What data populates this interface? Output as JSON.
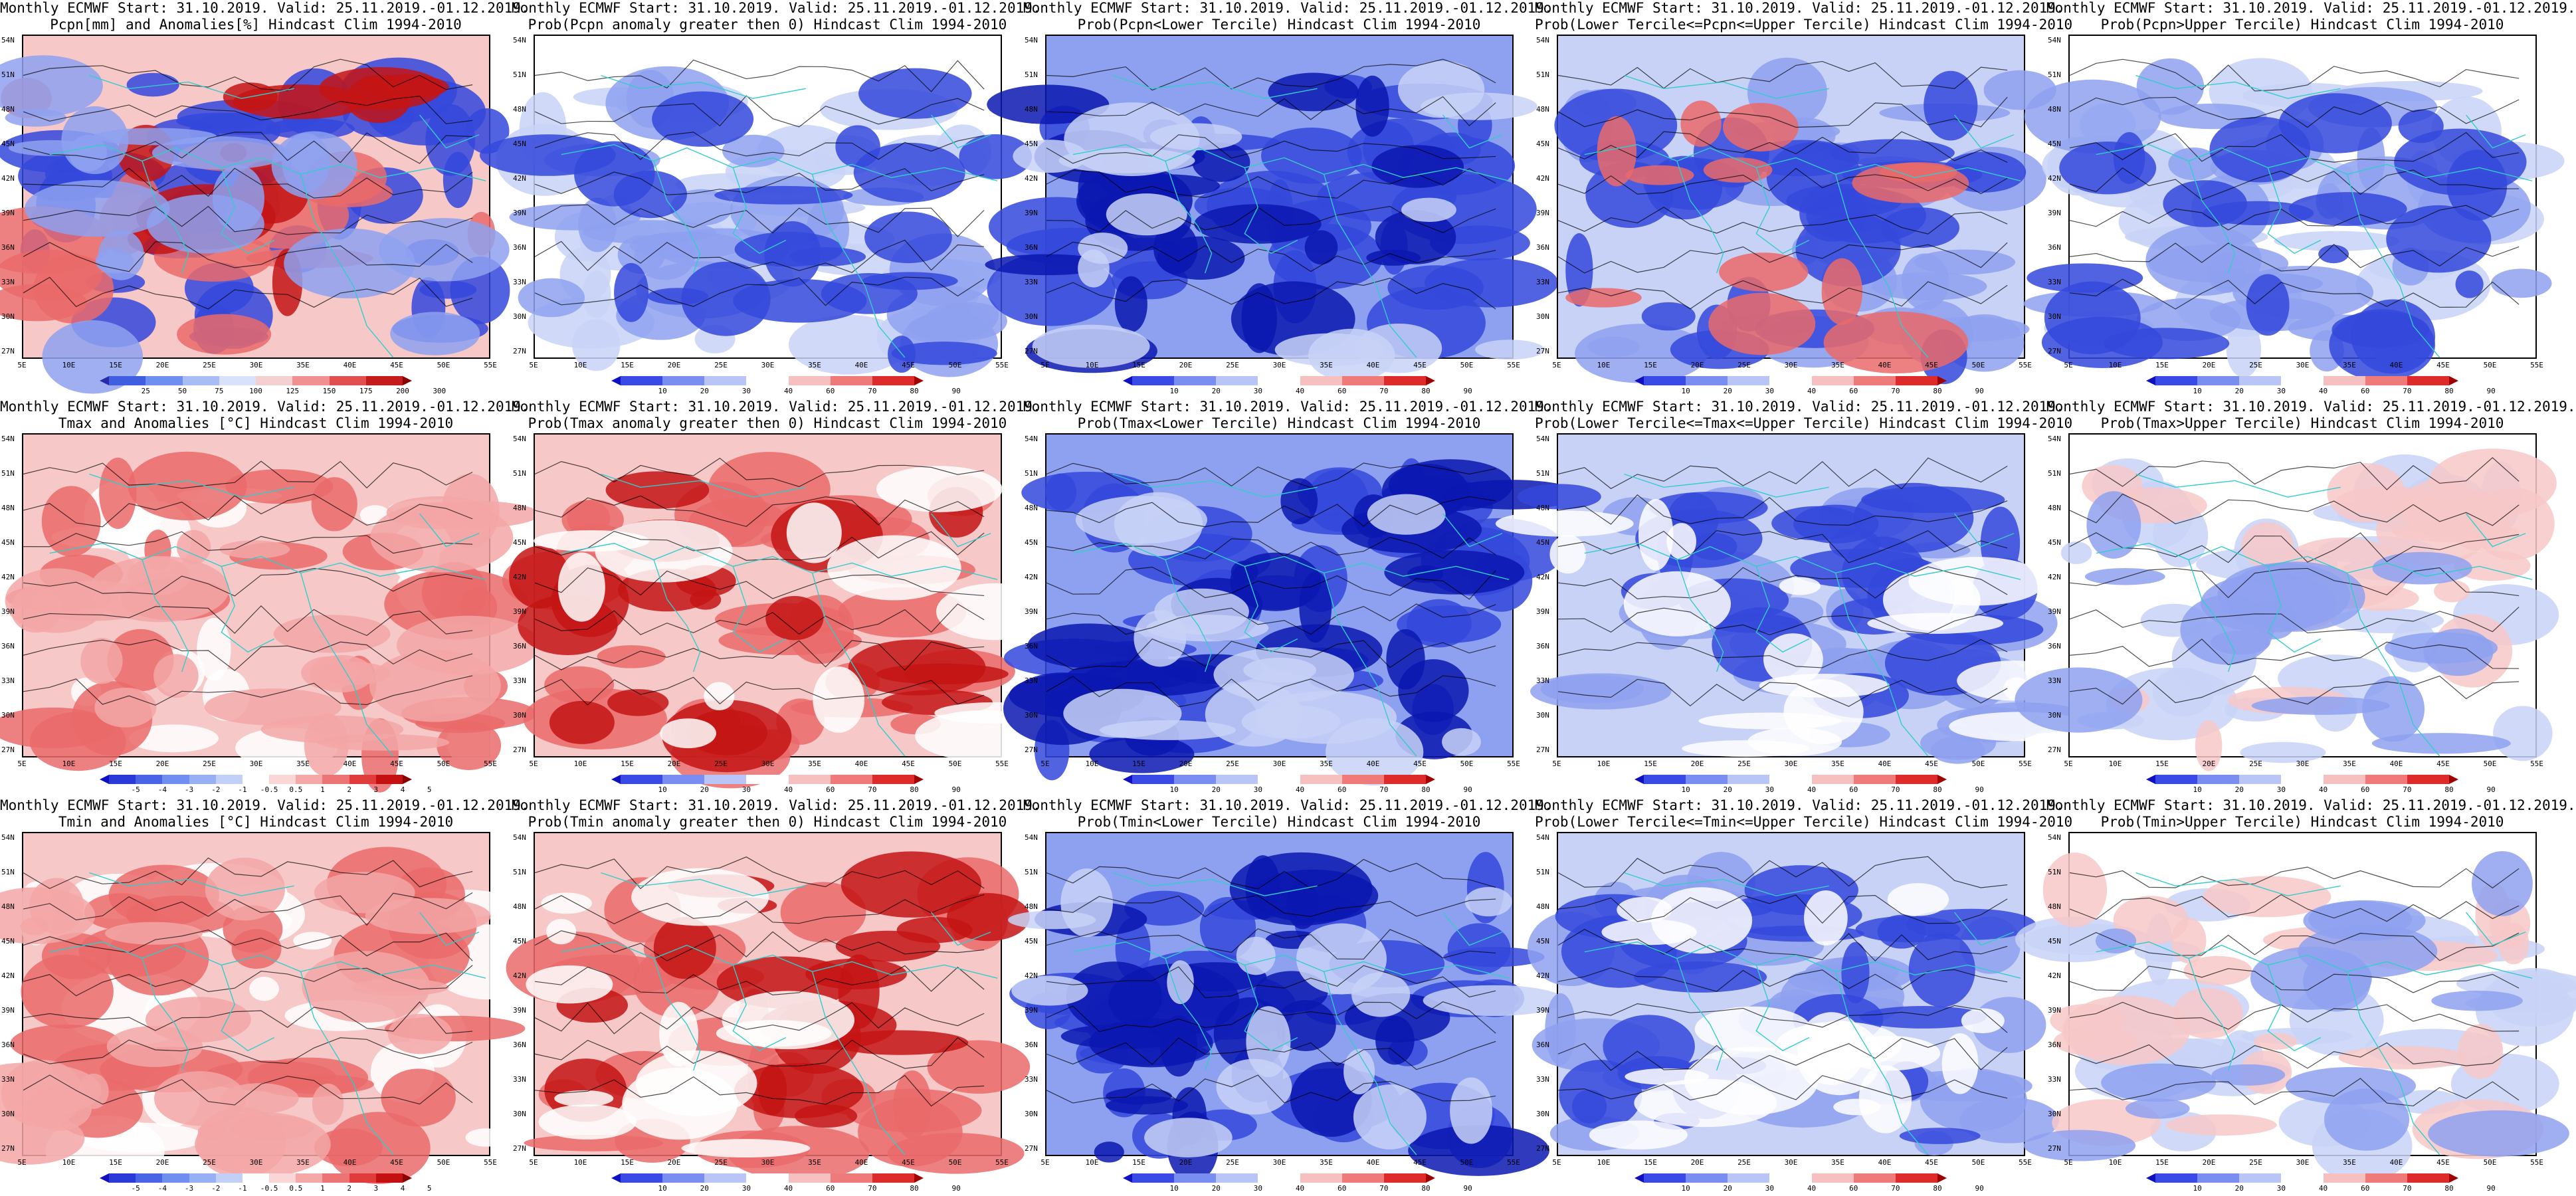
{
  "rows": [
    {
      "panels": [
        {
          "title1": "Monthly ECMWF Start: 31.10.2019. Valid: 25.11.2019.-01.12.2019.",
          "title2": "Pcpn[mm] and Anomalies[%] Hindcast Clim 1994-2010",
          "scheme": "anom_pcpn",
          "cbar": "pcpn"
        },
        {
          "title1": "Monthly ECMWF Start: 31.10.2019. Valid: 25.11.2019.-01.12.2019.",
          "title2": "Prob(Pcpn anomaly greater then 0) Hindcast Clim 1994-2010",
          "scheme": "prob_low",
          "cbar": "prob"
        },
        {
          "title1": "Monthly ECMWF Start: 31.10.2019. Valid: 25.11.2019.-01.12.2019.",
          "title2": "Prob(Pcpn<Lower Tercile) Hindcast Clim 1994-2010",
          "scheme": "prob_deep",
          "cbar": "prob"
        },
        {
          "title1": "Monthly ECMWF Start: 31.10.2019. Valid: 25.11.2019.-01.12.2019.",
          "title2": "Prob(Lower Tercile<=Pcpn<=Upper Tercile) Hindcast Clim 1994-2010",
          "scheme": "prob_mix",
          "cbar": "prob"
        },
        {
          "title1": "Monthly ECMWF Start: 31.10.2019. Valid: 25.11.2019.-01.12.2019.",
          "title2": "Prob(Pcpn>Upper Tercile) Hindcast Clim 1994-2010",
          "scheme": "prob_low",
          "cbar": "prob"
        }
      ]
    },
    {
      "panels": [
        {
          "title1": "Monthly ECMWF Start: 31.10.2019. Valid: 25.11.2019.-01.12.2019.",
          "title2": "Tmax and Anomalies [°C] Hindcast Clim 1994-2010",
          "scheme": "warm",
          "cbar": "temp"
        },
        {
          "title1": "Monthly ECMWF Start: 31.10.2019. Valid: 25.11.2019.-01.12.2019.",
          "title2": "Prob(Tmax anomaly greater then 0) Hindcast Clim 1994-2010",
          "scheme": "hot",
          "cbar": "prob"
        },
        {
          "title1": "Monthly ECMWF Start: 31.10.2019. Valid: 25.11.2019.-01.12.2019.",
          "title2": "Prob(Tmax<Lower Tercile) Hindcast Clim 1994-2010",
          "scheme": "prob_deep",
          "cbar": "prob"
        },
        {
          "title1": "Monthly ECMWF Start: 31.10.2019. Valid: 25.11.2019.-01.12.2019.",
          "title2": "Prob(Lower Tercile<=Tmax<=Upper Tercile) Hindcast Clim 1994-2010",
          "scheme": "prob_mid",
          "cbar": "prob"
        },
        {
          "title1": "Monthly ECMWF Start: 31.10.2019. Valid: 25.11.2019.-01.12.2019.",
          "title2": "Prob(Tmax>Upper Tercile) Hindcast Clim 1994-2010",
          "scheme": "prob_warmish",
          "cbar": "prob"
        }
      ]
    },
    {
      "panels": [
        {
          "title1": "Monthly ECMWF Start: 31.10.2019. Valid: 25.11.2019.-01.12.2019.",
          "title2": "Tmin and Anomalies [°C] Hindcast Clim 1994-2010",
          "scheme": "warm",
          "cbar": "temp"
        },
        {
          "title1": "Monthly ECMWF Start: 31.10.2019. Valid: 25.11.2019.-01.12.2019.",
          "title2": "Prob(Tmin anomaly greater then 0) Hindcast Clim 1994-2010",
          "scheme": "hot",
          "cbar": "prob"
        },
        {
          "title1": "Monthly ECMWF Start: 31.10.2019. Valid: 25.11.2019.-01.12.2019.",
          "title2": "Prob(Tmin<Lower Tercile) Hindcast Clim 1994-2010",
          "scheme": "prob_deep",
          "cbar": "prob"
        },
        {
          "title1": "Monthly ECMWF Start: 31.10.2019. Valid: 25.11.2019.-01.12.2019.",
          "title2": "Prob(Lower Tercile<=Tmin<=Upper Tercile) Hindcast Clim 1994-2010",
          "scheme": "prob_mid",
          "cbar": "prob"
        },
        {
          "title1": "Monthly ECMWF Start: 31.10.2019. Valid: 25.11.2019.-01.12.2019.",
          "title2": "Prob(Tmin>Upper Tercile) Hindcast Clim 1994-2010",
          "scheme": "prob_warmish",
          "cbar": "prob"
        }
      ]
    }
  ],
  "lat_labels": [
    "54N",
    "51N",
    "48N",
    "45N",
    "42N",
    "39N",
    "36N",
    "33N",
    "30N",
    "27N"
  ],
  "lon_labels": [
    "5E",
    "10E",
    "15E",
    "20E",
    "25E",
    "30E",
    "35E",
    "40E",
    "45E",
    "50E",
    "55E"
  ],
  "colorbars": {
    "pcpn": {
      "ticks": [
        "25",
        "50",
        "75",
        "100",
        "125",
        "150",
        "175",
        "200",
        "300"
      ],
      "colors": [
        "#2a2aa8",
        "#3f5fe0",
        "#6f8ff0",
        "#a8bdf5",
        "#d8e2fa",
        "#f5d0d0",
        "#f09090",
        "#e05050",
        "#c41c1c",
        "#8a0000"
      ]
    },
    "prob": {
      "ticks": [
        "10",
        "20",
        "30",
        "40",
        "60",
        "70",
        "80",
        "90"
      ],
      "colors": [
        "#1010c0",
        "#3a4ae6",
        "#7a8df0",
        "#b9c5f6",
        "#ffffff",
        "#f6c0c0",
        "#ee7a7a",
        "#dd2a2a",
        "#a00000"
      ]
    },
    "temp": {
      "ticks": [
        "-5",
        "-4",
        "-3",
        "-2",
        "-1",
        "-0.5",
        "0.5",
        "1",
        "2",
        "3",
        "4",
        "5"
      ],
      "colors": [
        "#1010c0",
        "#2a3ad8",
        "#4a64e6",
        "#6f8ef0",
        "#97b0f4",
        "#c2d0f8",
        "#ffffff",
        "#fbd6d6",
        "#f4a8a8",
        "#ec7474",
        "#e03c3c",
        "#c41010",
        "#8a0000"
      ]
    }
  },
  "palette": {
    "background": "#f0f0f0",
    "coast": "#33cccc",
    "contour": "#000000",
    "blue_deep": "#0a18b0",
    "blue": "#3448dc",
    "blue_light": "#8ea1f0",
    "blue_pale": "#c8d2f7",
    "red_pale": "#f7c8c8",
    "red": "#ea6a6a",
    "red_deep": "#c41414"
  }
}
